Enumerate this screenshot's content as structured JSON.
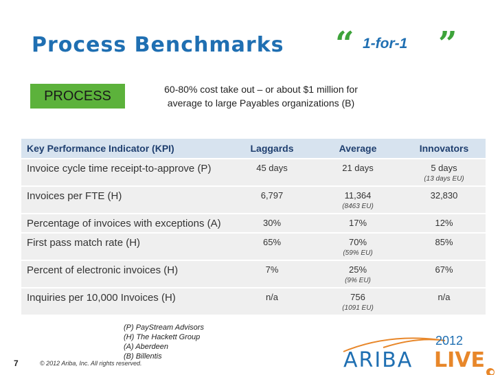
{
  "slide": {
    "title": "Process Benchmarks",
    "quote": {
      "open": "“",
      "text": "1-for-1",
      "close": "”"
    },
    "process_label": "PROCESS",
    "claim_line1": "60-80% cost take out – or about $1 million for",
    "claim_line2": "average to large Payables organizations (B)"
  },
  "table": {
    "headers": [
      "Key Performance Indicator (KPI)",
      "Laggards",
      "Average",
      "Innovators"
    ],
    "rows": [
      {
        "kpi": "Invoice cycle time receipt-to-approve (P)",
        "laggards": "45 days",
        "laggards_sub": "",
        "average": "21 days",
        "average_sub": "",
        "innovators": "5 days",
        "innovators_sub": "(13 days EU)"
      },
      {
        "kpi": "Invoices per FTE (H)",
        "laggards": "6,797",
        "laggards_sub": "",
        "average": "11,364",
        "average_sub": "(8463 EU)",
        "innovators": "32,830",
        "innovators_sub": ""
      },
      {
        "kpi": "Percentage of invoices with exceptions (A)",
        "laggards": "30%",
        "laggards_sub": "",
        "average": "17%",
        "average_sub": "",
        "innovators": "12%",
        "innovators_sub": ""
      },
      {
        "kpi": "First pass match rate (H)",
        "laggards": "65%",
        "laggards_sub": "",
        "average": "70%",
        "average_sub": "(59% EU)",
        "innovators": "85%",
        "innovators_sub": ""
      },
      {
        "kpi": "Percent of electronic invoices (H)",
        "laggards": "7%",
        "laggards_sub": "",
        "average": "25%",
        "average_sub": "(9% EU)",
        "innovators": "67%",
        "innovators_sub": ""
      },
      {
        "kpi": "Inquiries per 10,000 Invoices (H)",
        "laggards": "n/a",
        "laggards_sub": "",
        "average": "756",
        "average_sub": "(1091 EU)",
        "innovators": "n/a",
        "innovators_sub": ""
      }
    ]
  },
  "sources": [
    "(P) PayStream Advisors",
    "(H) The Hackett Group",
    "(A) Aberdeen",
    "(B) Billentis"
  ],
  "footer": {
    "page_number": "7",
    "copyright": "© 2012 Ariba, Inc. All rights reserved."
  },
  "logo": {
    "ariba": "ARIBA",
    "live": "LIVE",
    "year": "2012"
  },
  "colors": {
    "title_blue": "#1f6fb2",
    "green": "#5cb23b",
    "quote_green": "#3da33a",
    "header_bg": "#d7e3ef",
    "row_bg": "#efefef",
    "orange": "#e8872a"
  }
}
